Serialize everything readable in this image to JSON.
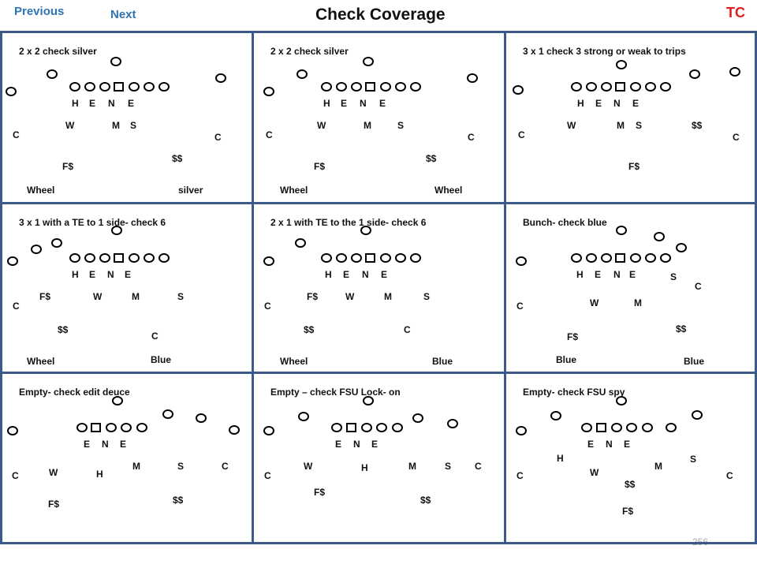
{
  "header": {
    "previous_label": "Previous",
    "next_label": "Next",
    "title": "Check Coverage",
    "tc_label": "TC",
    "page_number": "256"
  },
  "colors": {
    "nav": "#2e74b5",
    "tc": "#e02020",
    "grid": "#3b5a8a"
  },
  "panels": [
    {
      "title": "2 x 2 check silver",
      "labels": [
        "H",
        "E",
        "N",
        "E",
        "W",
        "M",
        "S",
        "C",
        "C",
        "$$",
        "F$",
        "Wheel",
        "silver"
      ]
    },
    {
      "title": "2 x 2 check silver",
      "labels": [
        "H",
        "E",
        "N",
        "E",
        "W",
        "M",
        "S",
        "C",
        "C",
        "$$",
        "F$",
        "Wheel",
        "Wheel"
      ]
    },
    {
      "title": "3 x 1 check 3 strong or weak to trips",
      "labels": [
        "H",
        "E",
        "N",
        "E",
        "W",
        "M",
        "S",
        "$$",
        "C",
        "C",
        "F$"
      ]
    },
    {
      "title": "3 x 1 with a TE to 1 side- check 6",
      "labels": [
        "H",
        "E",
        "N",
        "E",
        "F$",
        "W",
        "M",
        "S",
        "C",
        "$$",
        "C",
        "Wheel",
        "Blue"
      ]
    },
    {
      "title": "2 x 1 with TE to the 1 side- check 6",
      "labels": [
        "H",
        "E",
        "N",
        "E",
        "F$",
        "W",
        "M",
        "S",
        "C",
        "$$",
        "C",
        "Wheel",
        "Blue"
      ]
    },
    {
      "title": "Bunch- check blue",
      "labels": [
        "H",
        "E",
        "N",
        "E",
        "S",
        "C",
        "C",
        "W",
        "M",
        "$$",
        "F$",
        "Blue",
        "Blue"
      ]
    },
    {
      "title": "Empty- check edit deuce",
      "labels": [
        "E",
        "N",
        "E",
        "M",
        "S",
        "C",
        "C",
        "W",
        "H",
        "$$",
        "F$"
      ]
    },
    {
      "title": "Empty – check FSU  Lock- on",
      "labels": [
        "E",
        "N",
        "E",
        "W",
        "M",
        "S",
        "C",
        "C",
        "H",
        "F$",
        "$$"
      ]
    },
    {
      "title": "Empty- check FSU spy",
      "labels": [
        "E",
        "N",
        "E",
        "H",
        "S",
        "W",
        "M",
        "C",
        "C",
        "$$",
        "F$"
      ]
    }
  ]
}
